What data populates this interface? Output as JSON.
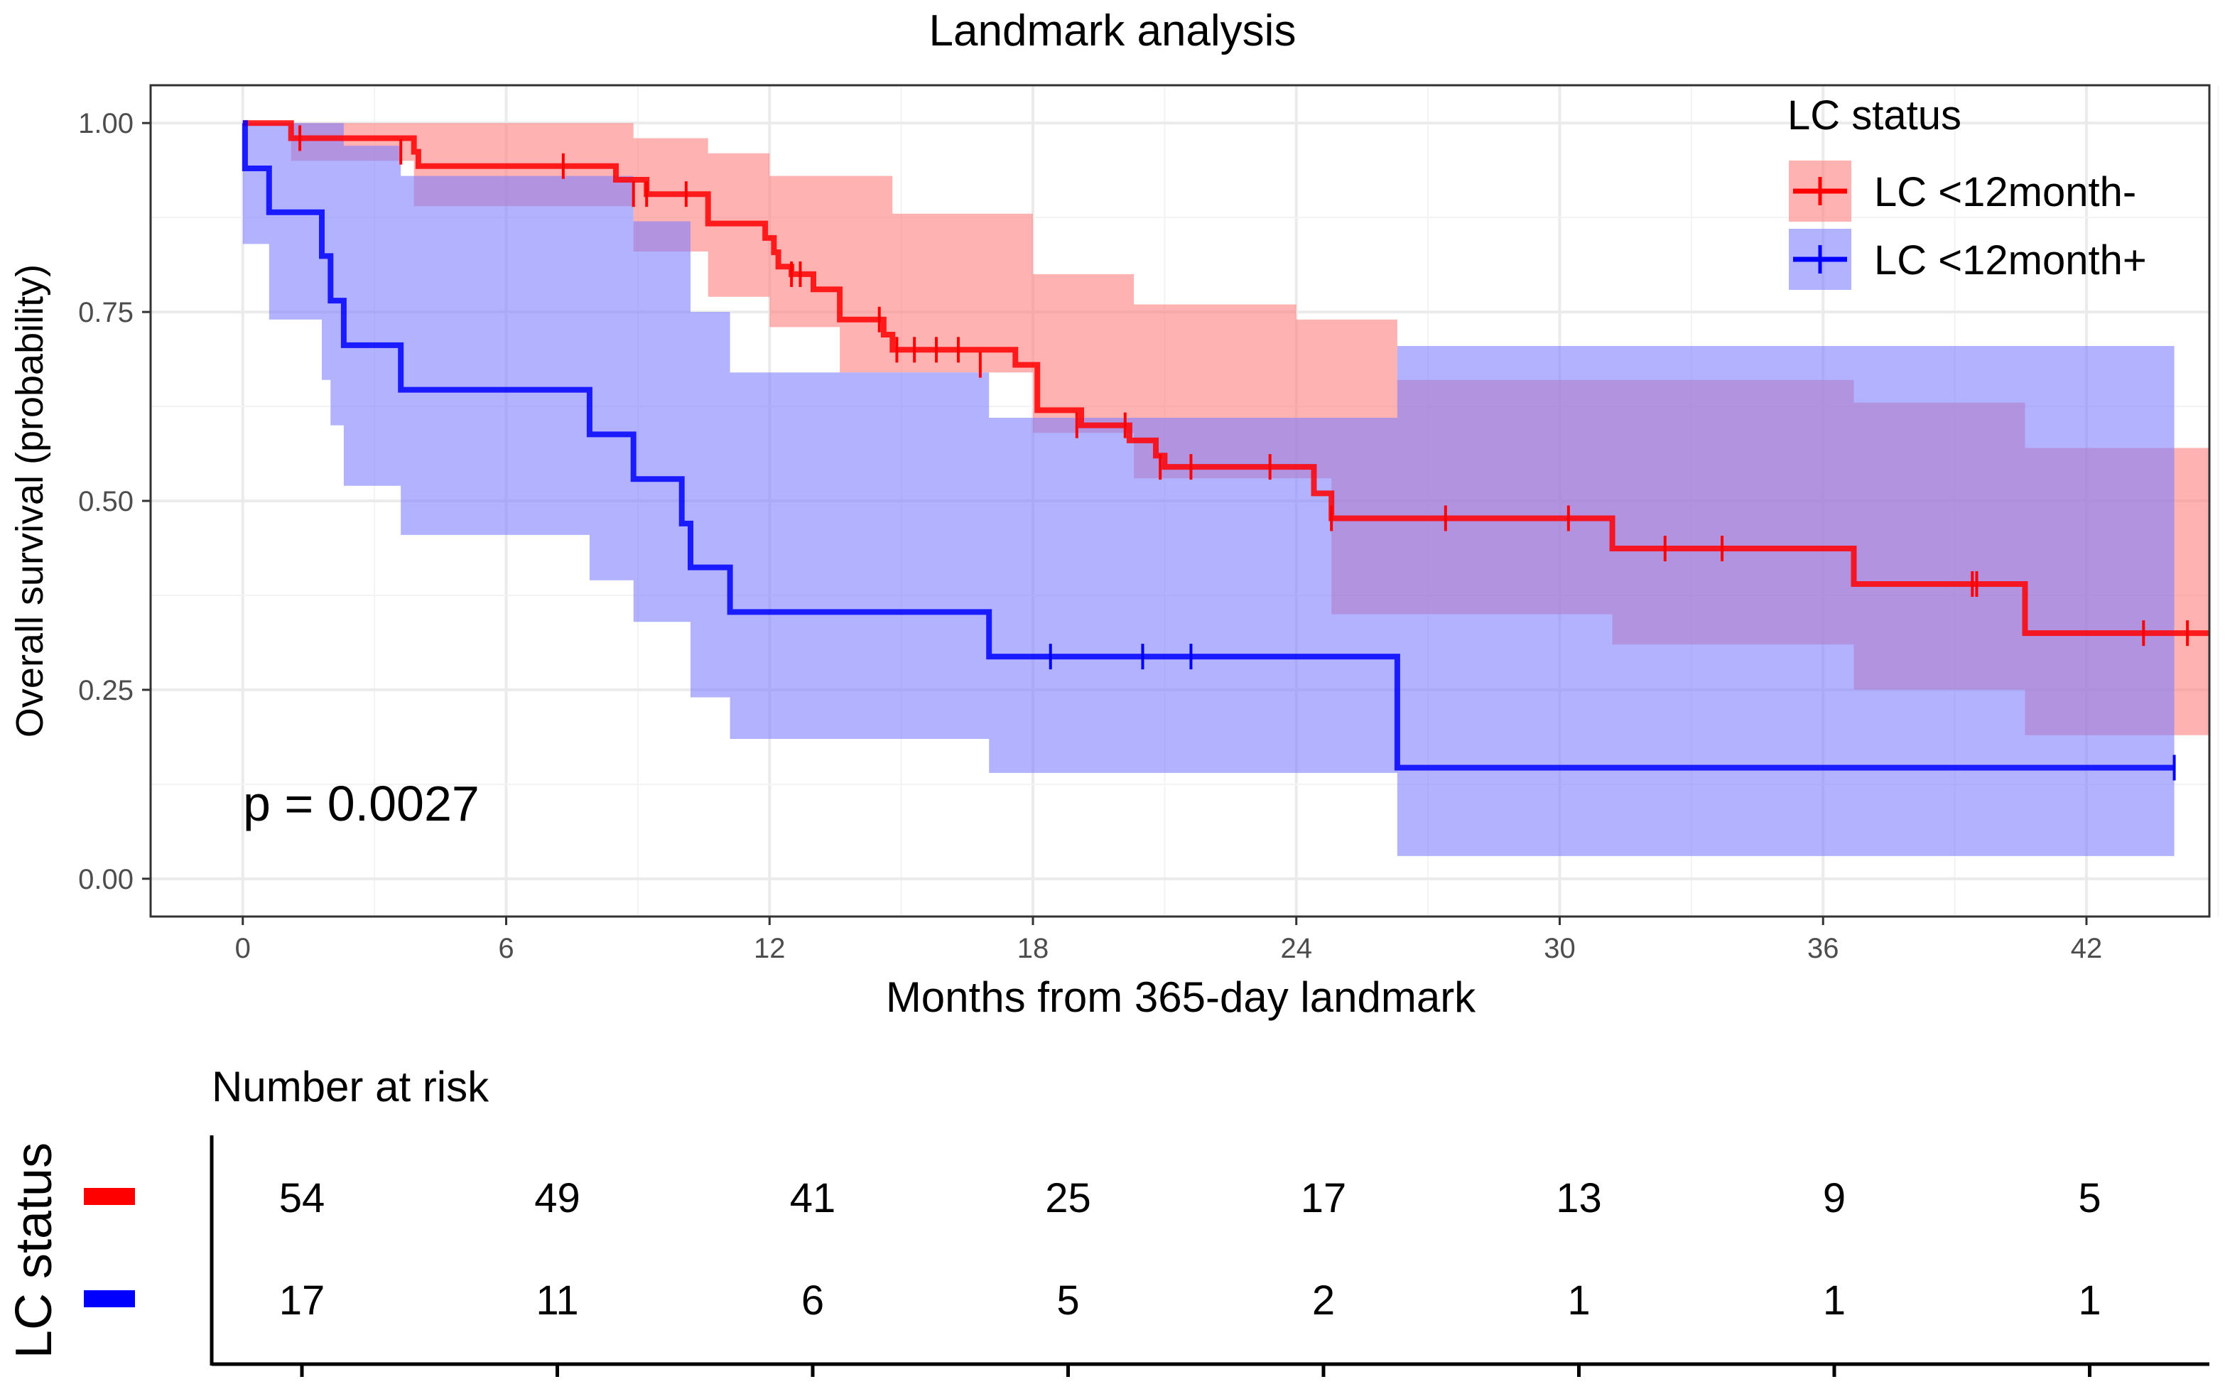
{
  "chart_data": {
    "type": "step",
    "title": "Landmark analysis",
    "xlabel": "Months from 365-day landmark",
    "ylabel": "Overall survival (probability)",
    "xlim": [
      -2.1,
      44.8
    ],
    "ylim": [
      -0.05,
      1.05
    ],
    "x_ticks": [
      0,
      6,
      12,
      18,
      24,
      30,
      36,
      42
    ],
    "x_tick_labels": [
      "0",
      "6",
      "12",
      "18",
      "24",
      "30",
      "36",
      "42"
    ],
    "y_ticks": [
      0,
      0.25,
      0.5,
      0.75,
      1.0
    ],
    "y_tick_labels": [
      "0.00",
      "0.25",
      "0.50",
      "0.75",
      "1.00"
    ],
    "grid": true,
    "pvalue_text": "p = 0.0027",
    "legend": {
      "title": "LC status",
      "position": "top-right",
      "entries": [
        "LC <12month-",
        "LC <12month+"
      ]
    },
    "series": [
      {
        "name": "LC <12month-",
        "color": "#FF0000",
        "band_color": "#FF7F7F",
        "steps": [
          [
            0,
            1.0
          ],
          [
            1.1,
            0.98
          ],
          [
            3.9,
            0.962
          ],
          [
            4.0,
            0.943
          ],
          [
            8.5,
            0.925
          ],
          [
            9.2,
            0.906
          ],
          [
            10.6,
            0.867
          ],
          [
            11.9,
            0.848
          ],
          [
            12.1,
            0.829
          ],
          [
            12.2,
            0.81
          ],
          [
            12.5,
            0.8
          ],
          [
            13.0,
            0.78
          ],
          [
            13.6,
            0.74
          ],
          [
            14.6,
            0.72
          ],
          [
            14.8,
            0.7
          ],
          [
            17.6,
            0.68
          ],
          [
            18.1,
            0.62
          ],
          [
            19.1,
            0.6
          ],
          [
            20.2,
            0.58
          ],
          [
            20.8,
            0.56
          ],
          [
            21.0,
            0.545
          ],
          [
            24.4,
            0.51
          ],
          [
            24.8,
            0.477
          ],
          [
            31.2,
            0.437
          ],
          [
            36.7,
            0.39
          ],
          [
            40.6,
            0.325
          ],
          [
            44.8,
            0.325
          ]
        ],
        "band_upper": [
          [
            0,
            1.0
          ],
          [
            3.9,
            1.0
          ],
          [
            8.9,
            0.98
          ],
          [
            10.6,
            0.96
          ],
          [
            12.0,
            0.93
          ],
          [
            14.8,
            0.88
          ],
          [
            18.0,
            0.8
          ],
          [
            20.3,
            0.76
          ],
          [
            24.0,
            0.74
          ],
          [
            26.3,
            0.66
          ],
          [
            26.3,
            0.66
          ]
        ],
        "band_lower": [
          [
            0,
            1.0
          ],
          [
            1.1,
            0.95
          ],
          [
            3.9,
            0.89
          ],
          [
            8.9,
            0.83
          ],
          [
            10.6,
            0.77
          ],
          [
            12.0,
            0.73
          ],
          [
            13.6,
            0.67
          ],
          [
            18.0,
            0.59
          ],
          [
            20.3,
            0.53
          ],
          [
            24.8,
            0.35
          ],
          [
            31.2,
            0.31
          ],
          [
            36.7,
            0.25
          ],
          [
            40.6,
            0.19
          ],
          [
            44.8,
            0.19
          ]
        ],
        "band_upper_tail": [
          [
            26.3,
            0.66
          ],
          [
            36.7,
            0.63
          ],
          [
            40.6,
            0.57
          ],
          [
            44.8,
            0.57
          ]
        ],
        "censor_marks": [
          [
            1.3,
            0.98
          ],
          [
            3.6,
            0.962
          ],
          [
            7.3,
            0.943
          ],
          [
            8.9,
            0.906
          ],
          [
            9.2,
            0.906
          ],
          [
            10.1,
            0.906
          ],
          [
            12.5,
            0.8
          ],
          [
            12.7,
            0.8
          ],
          [
            14.5,
            0.74
          ],
          [
            14.9,
            0.7
          ],
          [
            15.3,
            0.7
          ],
          [
            15.8,
            0.7
          ],
          [
            16.3,
            0.7
          ],
          [
            16.8,
            0.68
          ],
          [
            19.0,
            0.6
          ],
          [
            20.1,
            0.6
          ],
          [
            20.9,
            0.545
          ],
          [
            21.6,
            0.545
          ],
          [
            23.4,
            0.545
          ],
          [
            24.8,
            0.477
          ],
          [
            27.4,
            0.477
          ],
          [
            30.2,
            0.477
          ],
          [
            32.4,
            0.437
          ],
          [
            33.7,
            0.437
          ],
          [
            39.4,
            0.39
          ],
          [
            39.5,
            0.39
          ],
          [
            43.3,
            0.325
          ],
          [
            44.3,
            0.325
          ]
        ]
      },
      {
        "name": "LC <12month+",
        "color": "#0000FF",
        "band_color": "#7F7FFF",
        "steps": [
          [
            0,
            1.0
          ],
          [
            0.05,
            0.94
          ],
          [
            0.6,
            0.882
          ],
          [
            1.8,
            0.824
          ],
          [
            2.0,
            0.765
          ],
          [
            2.3,
            0.706
          ],
          [
            3.6,
            0.647
          ],
          [
            7.9,
            0.588
          ],
          [
            8.9,
            0.529
          ],
          [
            10.0,
            0.47
          ],
          [
            10.2,
            0.412
          ],
          [
            11.1,
            0.353
          ],
          [
            17.0,
            0.294
          ],
          [
            26.3,
            0.147
          ],
          [
            44.0,
            0.147
          ]
        ],
        "band_upper": [
          [
            0,
            1.0
          ],
          [
            1.9,
            1.0
          ],
          [
            2.3,
            0.97
          ],
          [
            3.6,
            0.93
          ],
          [
            8.9,
            0.87
          ],
          [
            10.2,
            0.75
          ],
          [
            11.1,
            0.67
          ],
          [
            17.0,
            0.61
          ],
          [
            26.3,
            0.705
          ],
          [
            44.0,
            0.705
          ]
        ],
        "band_lower": [
          [
            0,
            0.84
          ],
          [
            0.6,
            0.74
          ],
          [
            1.8,
            0.66
          ],
          [
            2.0,
            0.6
          ],
          [
            2.3,
            0.52
          ],
          [
            3.6,
            0.455
          ],
          [
            7.9,
            0.395
          ],
          [
            8.9,
            0.34
          ],
          [
            10.2,
            0.24
          ],
          [
            11.1,
            0.185
          ],
          [
            17.0,
            0.14
          ],
          [
            26.3,
            0.03
          ],
          [
            44.0,
            0.03
          ]
        ],
        "censor_marks": [
          [
            18.4,
            0.294
          ],
          [
            20.5,
            0.294
          ],
          [
            21.6,
            0.294
          ],
          [
            44.0,
            0.147
          ]
        ]
      }
    ]
  },
  "risk_table": {
    "title": "Number at risk",
    "ylabel": "LC status",
    "times": [
      0,
      6,
      12,
      18,
      24,
      30,
      36,
      42
    ],
    "rows": [
      {
        "name": "LC <12month-",
        "color": "#FF0000",
        "values": [
          "54",
          "49",
          "41",
          "25",
          "17",
          "13",
          "9",
          "5"
        ]
      },
      {
        "name": "LC <12month+",
        "color": "#0000FF",
        "values": [
          "17",
          "11",
          "6",
          "5",
          "2",
          "1",
          "1",
          "1"
        ]
      }
    ]
  }
}
